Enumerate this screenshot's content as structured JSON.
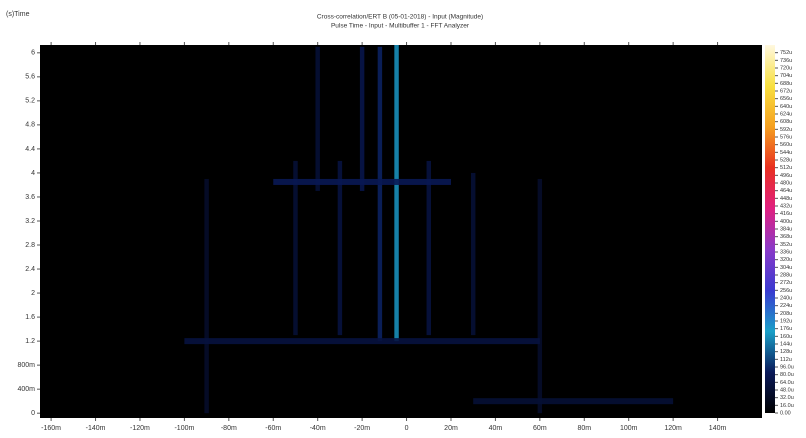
{
  "chart_data": {
    "type": "heatmap",
    "title": "Cross-correlation/ERT B (05-01-2018) - Input (Magnitude)",
    "subtitle": "Pulse Time - Input - Multibuffer 1 - FFT Analyzer",
    "ylabel": "(s)Time",
    "xlim": [
      -0.165,
      0.16
    ],
    "ylim": [
      -0.08,
      6.13
    ],
    "xticks": [
      {
        "value": -0.16,
        "label": "-160m"
      },
      {
        "value": -0.14,
        "label": "-140m"
      },
      {
        "value": -0.12,
        "label": "-120m"
      },
      {
        "value": -0.1,
        "label": "-100m"
      },
      {
        "value": -0.08,
        "label": "-80m"
      },
      {
        "value": -0.06,
        "label": "-60m"
      },
      {
        "value": -0.04,
        "label": "-40m"
      },
      {
        "value": -0.02,
        "label": "-20m"
      },
      0,
      {
        "value": 0.02,
        "label": "20m"
      },
      {
        "value": 0.04,
        "label": "40m"
      },
      {
        "value": 0.06,
        "label": "60m"
      },
      {
        "value": 0.08,
        "label": "80m"
      },
      {
        "value": 0.1,
        "label": "100m"
      },
      {
        "value": 0.12,
        "label": "120m"
      },
      {
        "value": 0.14,
        "label": "140m"
      }
    ],
    "yticks": [
      0,
      {
        "value": 0.4,
        "label": "400m"
      },
      {
        "value": 0.8,
        "label": "800m"
      },
      1.2,
      1.6,
      2,
      2.4,
      2.8,
      3.2,
      3.6,
      4,
      4.4,
      4.8,
      5.2,
      5.6,
      6
    ],
    "colorbar": {
      "lim": [
        0,
        0.000768
      ],
      "colormap": [
        "#000000",
        "#0a1a5a",
        "#1aa0c8",
        "#3a3ad0",
        "#8a3ac8",
        "#e02080",
        "#e83020",
        "#f5a020",
        "#f8e040",
        "#fff8e0"
      ],
      "ticks": [
        {
          "value": 0,
          "label": "0.00"
        },
        {
          "value": 1.6e-05,
          "label": "16.0u"
        },
        {
          "value": 3.2e-05,
          "label": "32.0u"
        },
        {
          "value": 4.8e-05,
          "label": "48.0u"
        },
        {
          "value": 6.4e-05,
          "label": "64.0u"
        },
        {
          "value": 8e-05,
          "label": "80.0u"
        },
        {
          "value": 9.6e-05,
          "label": "96.0u"
        },
        {
          "value": 0.000112,
          "label": "112u"
        },
        {
          "value": 0.000128,
          "label": "128u"
        },
        {
          "value": 0.000144,
          "label": "144u"
        },
        {
          "value": 0.00016,
          "label": "160u"
        },
        {
          "value": 0.000176,
          "label": "176u"
        },
        {
          "value": 0.000192,
          "label": "192u"
        },
        {
          "value": 0.000208,
          "label": "208u"
        },
        {
          "value": 0.000224,
          "label": "224u"
        },
        {
          "value": 0.00024,
          "label": "240u"
        },
        {
          "value": 0.000256,
          "label": "256u"
        },
        {
          "value": 0.000272,
          "label": "272u"
        },
        {
          "value": 0.000288,
          "label": "288u"
        },
        {
          "value": 0.000304,
          "label": "304u"
        },
        {
          "value": 0.00032,
          "label": "320u"
        },
        {
          "value": 0.000336,
          "label": "336u"
        },
        {
          "value": 0.000352,
          "label": "352u"
        },
        {
          "value": 0.000368,
          "label": "368u"
        },
        {
          "value": 0.000384,
          "label": "384u"
        },
        {
          "value": 0.0004,
          "label": "400u"
        },
        {
          "value": 0.000416,
          "label": "416u"
        },
        {
          "value": 0.000432,
          "label": "432u"
        },
        {
          "value": 0.000448,
          "label": "448u"
        },
        {
          "value": 0.000464,
          "label": "464u"
        },
        {
          "value": 0.00048,
          "label": "480u"
        },
        {
          "value": 0.000496,
          "label": "496u"
        },
        {
          "value": 0.000512,
          "label": "512u"
        },
        {
          "value": 0.000528,
          "label": "528u"
        },
        {
          "value": 0.000544,
          "label": "544u"
        },
        {
          "value": 0.00056,
          "label": "560u"
        },
        {
          "value": 0.000576,
          "label": "576u"
        },
        {
          "value": 0.000592,
          "label": "592u"
        },
        {
          "value": 0.000608,
          "label": "608u"
        },
        {
          "value": 0.000624,
          "label": "624u"
        },
        {
          "value": 0.00064,
          "label": "640u"
        },
        {
          "value": 0.000656,
          "label": "656u"
        },
        {
          "value": 0.000672,
          "label": "672u"
        },
        {
          "value": 0.000688,
          "label": "688u"
        },
        {
          "value": 0.000704,
          "label": "704u"
        },
        {
          "value": 0.00072,
          "label": "720u"
        },
        {
          "value": 0.000736,
          "label": "736u"
        },
        {
          "value": 0.000752,
          "label": "752u"
        }
      ]
    },
    "cells": {
      "x0": [
        -0.0055,
        -0.013,
        -0.021,
        -0.031,
        -0.051,
        0.009,
        0.029,
        -0.091,
        0.059,
        -0.041,
        -0.06,
        -0.1,
        0.03
      ],
      "x1": [
        -0.0035,
        -0.011,
        -0.019,
        -0.029,
        -0.049,
        0.011,
        0.031,
        -0.089,
        0.061,
        -0.039,
        0.02,
        0.06,
        0.12
      ],
      "y0": [
        1.2,
        1.2,
        3.7,
        1.3,
        1.3,
        1.3,
        1.3,
        0.0,
        0.0,
        3.7,
        3.8,
        1.15,
        0.15
      ],
      "y1": [
        6.13,
        6.1,
        6.1,
        4.2,
        4.2,
        4.2,
        4.0,
        3.9,
        3.9,
        6.1,
        3.9,
        1.25,
        0.25
      ],
      "values": [
        0.00016,
        9e-05,
        7e-05,
        6e-05,
        5e-05,
        6e-05,
        5e-05,
        4e-05,
        4e-05,
        5e-05,
        8e-05,
        6e-05,
        5e-05
      ]
    }
  }
}
